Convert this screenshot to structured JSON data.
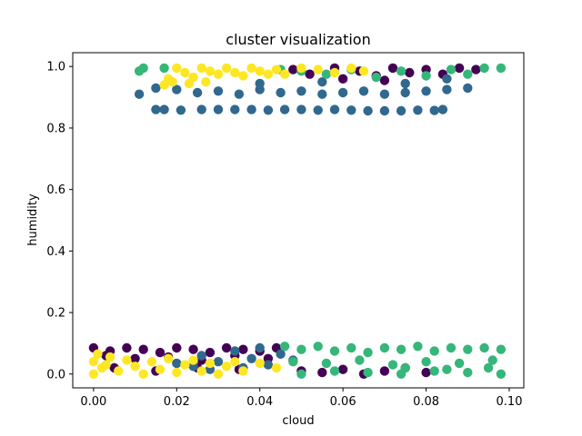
{
  "chart_data": {
    "type": "scatter",
    "title": "cluster visualization",
    "xlabel": "cloud",
    "ylabel": "humidity",
    "xlim": [
      -0.005,
      0.1035
    ],
    "ylim": [
      -0.045,
      1.045
    ],
    "xticks": [
      0.0,
      0.02,
      0.04,
      0.06,
      0.08,
      0.1
    ],
    "xtick_labels": [
      "0.00",
      "0.02",
      "0.04",
      "0.06",
      "0.08",
      "0.10"
    ],
    "yticks": [
      0.0,
      0.2,
      0.4,
      0.6,
      0.8,
      1.0
    ],
    "ytick_labels": [
      "0.0",
      "0.2",
      "0.4",
      "0.6",
      "0.8",
      "1.0"
    ],
    "grid": false,
    "legend": "none",
    "colors": {
      "cluster_0": "#440154",
      "cluster_1": "#31688e",
      "cluster_2": "#35b779",
      "cluster_3": "#fde725"
    },
    "series": [
      {
        "points": [
          [
            0.0,
            0.085
          ],
          [
            0.004,
            0.075
          ],
          [
            0.008,
            0.085
          ],
          [
            0.012,
            0.08
          ],
          [
            0.016,
            0.07
          ],
          [
            0.02,
            0.085
          ],
          [
            0.024,
            0.08
          ],
          [
            0.028,
            0.07
          ],
          [
            0.032,
            0.085
          ],
          [
            0.036,
            0.08
          ],
          [
            0.04,
            0.075
          ],
          [
            0.044,
            0.085
          ],
          [
            0.003,
            0.06
          ],
          [
            0.01,
            0.05
          ],
          [
            0.018,
            0.055
          ],
          [
            0.026,
            0.045
          ],
          [
            0.034,
            0.06
          ],
          [
            0.042,
            0.05
          ],
          [
            0.005,
            0.02
          ],
          [
            0.015,
            0.01
          ],
          [
            0.025,
            0.02
          ],
          [
            0.035,
            0.015
          ],
          [
            0.05,
            0.01
          ],
          [
            0.055,
            0.005
          ],
          [
            0.06,
            0.015
          ],
          [
            0.065,
            0.0
          ],
          [
            0.07,
            0.01
          ],
          [
            0.075,
            0.02
          ],
          [
            0.08,
            0.005
          ],
          [
            0.048,
            0.99
          ],
          [
            0.052,
            0.975
          ],
          [
            0.058,
            0.995
          ],
          [
            0.064,
            0.985
          ],
          [
            0.068,
            0.97
          ],
          [
            0.072,
            0.995
          ],
          [
            0.076,
            0.98
          ],
          [
            0.08,
            0.99
          ],
          [
            0.084,
            0.975
          ],
          [
            0.088,
            0.995
          ],
          [
            0.092,
            0.99
          ],
          [
            0.06,
            0.96
          ],
          [
            0.07,
            0.955
          ]
        ]
      },
      {
        "points": [
          [
            0.011,
            0.91
          ],
          [
            0.015,
            0.93
          ],
          [
            0.02,
            0.925
          ],
          [
            0.025,
            0.915
          ],
          [
            0.03,
            0.92
          ],
          [
            0.035,
            0.91
          ],
          [
            0.04,
            0.925
          ],
          [
            0.045,
            0.915
          ],
          [
            0.05,
            0.92
          ],
          [
            0.055,
            0.91
          ],
          [
            0.06,
            0.915
          ],
          [
            0.065,
            0.92
          ],
          [
            0.07,
            0.91
          ],
          [
            0.075,
            0.915
          ],
          [
            0.08,
            0.92
          ],
          [
            0.085,
            0.925
          ],
          [
            0.09,
            0.93
          ],
          [
            0.015,
            0.86
          ],
          [
            0.017,
            0.86
          ],
          [
            0.021,
            0.858
          ],
          [
            0.026,
            0.86
          ],
          [
            0.03,
            0.86
          ],
          [
            0.034,
            0.86
          ],
          [
            0.038,
            0.86
          ],
          [
            0.042,
            0.858
          ],
          [
            0.046,
            0.86
          ],
          [
            0.05,
            0.86
          ],
          [
            0.054,
            0.858
          ],
          [
            0.058,
            0.86
          ],
          [
            0.062,
            0.858
          ],
          [
            0.066,
            0.856
          ],
          [
            0.07,
            0.856
          ],
          [
            0.074,
            0.856
          ],
          [
            0.078,
            0.858
          ],
          [
            0.082,
            0.857
          ],
          [
            0.084,
            0.86
          ],
          [
            0.04,
            0.945
          ],
          [
            0.055,
            0.95
          ],
          [
            0.075,
            0.945
          ],
          [
            0.085,
            0.96
          ],
          [
            0.02,
            0.035
          ],
          [
            0.026,
            0.06
          ],
          [
            0.03,
            0.04
          ],
          [
            0.034,
            0.075
          ],
          [
            0.038,
            0.05
          ],
          [
            0.042,
            0.03
          ],
          [
            0.045,
            0.065
          ],
          [
            0.048,
            0.045
          ],
          [
            0.04,
            0.085
          ],
          [
            0.036,
            0.02
          ],
          [
            0.028,
            0.015
          ],
          [
            0.024,
            0.025
          ]
        ]
      },
      {
        "points": [
          [
            0.011,
            0.985
          ],
          [
            0.012,
            0.995
          ],
          [
            0.017,
            0.995
          ],
          [
            0.045,
            0.99
          ],
          [
            0.05,
            0.985
          ],
          [
            0.056,
            0.975
          ],
          [
            0.062,
            0.99
          ],
          [
            0.068,
            0.965
          ],
          [
            0.074,
            0.985
          ],
          [
            0.08,
            0.97
          ],
          [
            0.086,
            0.99
          ],
          [
            0.09,
            0.975
          ],
          [
            0.094,
            0.995
          ],
          [
            0.098,
            0.995
          ],
          [
            0.046,
            0.09
          ],
          [
            0.05,
            0.08
          ],
          [
            0.054,
            0.09
          ],
          [
            0.058,
            0.075
          ],
          [
            0.062,
            0.085
          ],
          [
            0.066,
            0.07
          ],
          [
            0.07,
            0.085
          ],
          [
            0.074,
            0.08
          ],
          [
            0.078,
            0.09
          ],
          [
            0.082,
            0.075
          ],
          [
            0.086,
            0.085
          ],
          [
            0.09,
            0.08
          ],
          [
            0.094,
            0.085
          ],
          [
            0.098,
            0.08
          ],
          [
            0.048,
            0.04
          ],
          [
            0.056,
            0.035
          ],
          [
            0.064,
            0.045
          ],
          [
            0.072,
            0.03
          ],
          [
            0.08,
            0.04
          ],
          [
            0.088,
            0.035
          ],
          [
            0.096,
            0.045
          ],
          [
            0.05,
            0.0
          ],
          [
            0.058,
            0.01
          ],
          [
            0.066,
            0.005
          ],
          [
            0.074,
            0.0
          ],
          [
            0.082,
            0.01
          ],
          [
            0.09,
            0.005
          ],
          [
            0.098,
            0.0
          ],
          [
            0.095,
            0.02
          ],
          [
            0.085,
            0.015
          ],
          [
            0.075,
            0.02
          ]
        ]
      },
      {
        "points": [
          [
            0.017,
            0.94
          ],
          [
            0.018,
            0.96
          ],
          [
            0.02,
            0.995
          ],
          [
            0.022,
            0.98
          ],
          [
            0.024,
            0.965
          ],
          [
            0.026,
            0.995
          ],
          [
            0.028,
            0.985
          ],
          [
            0.03,
            0.975
          ],
          [
            0.032,
            0.995
          ],
          [
            0.034,
            0.98
          ],
          [
            0.036,
            0.97
          ],
          [
            0.038,
            0.995
          ],
          [
            0.04,
            0.985
          ],
          [
            0.042,
            0.975
          ],
          [
            0.044,
            0.99
          ],
          [
            0.046,
            0.975
          ],
          [
            0.05,
            0.995
          ],
          [
            0.054,
            0.99
          ],
          [
            0.058,
            0.98
          ],
          [
            0.062,
            0.995
          ],
          [
            0.065,
            0.985
          ],
          [
            0.019,
            0.95
          ],
          [
            0.023,
            0.945
          ],
          [
            0.027,
            0.95
          ],
          [
            0.0,
            0.04
          ],
          [
            0.002,
            0.02
          ],
          [
            0.004,
            0.055
          ],
          [
            0.006,
            0.01
          ],
          [
            0.008,
            0.045
          ],
          [
            0.01,
            0.025
          ],
          [
            0.012,
            0.0
          ],
          [
            0.014,
            0.04
          ],
          [
            0.016,
            0.015
          ],
          [
            0.018,
            0.05
          ],
          [
            0.02,
            0.005
          ],
          [
            0.022,
            0.03
          ],
          [
            0.024,
            0.045
          ],
          [
            0.026,
            0.01
          ],
          [
            0.028,
            0.035
          ],
          [
            0.03,
            0.0
          ],
          [
            0.032,
            0.025
          ],
          [
            0.034,
            0.04
          ],
          [
            0.0,
            0.0
          ],
          [
            0.001,
            0.065
          ],
          [
            0.003,
            0.03
          ],
          [
            0.036,
            0.01
          ],
          [
            0.04,
            0.035
          ],
          [
            0.044,
            0.02
          ]
        ]
      }
    ]
  }
}
